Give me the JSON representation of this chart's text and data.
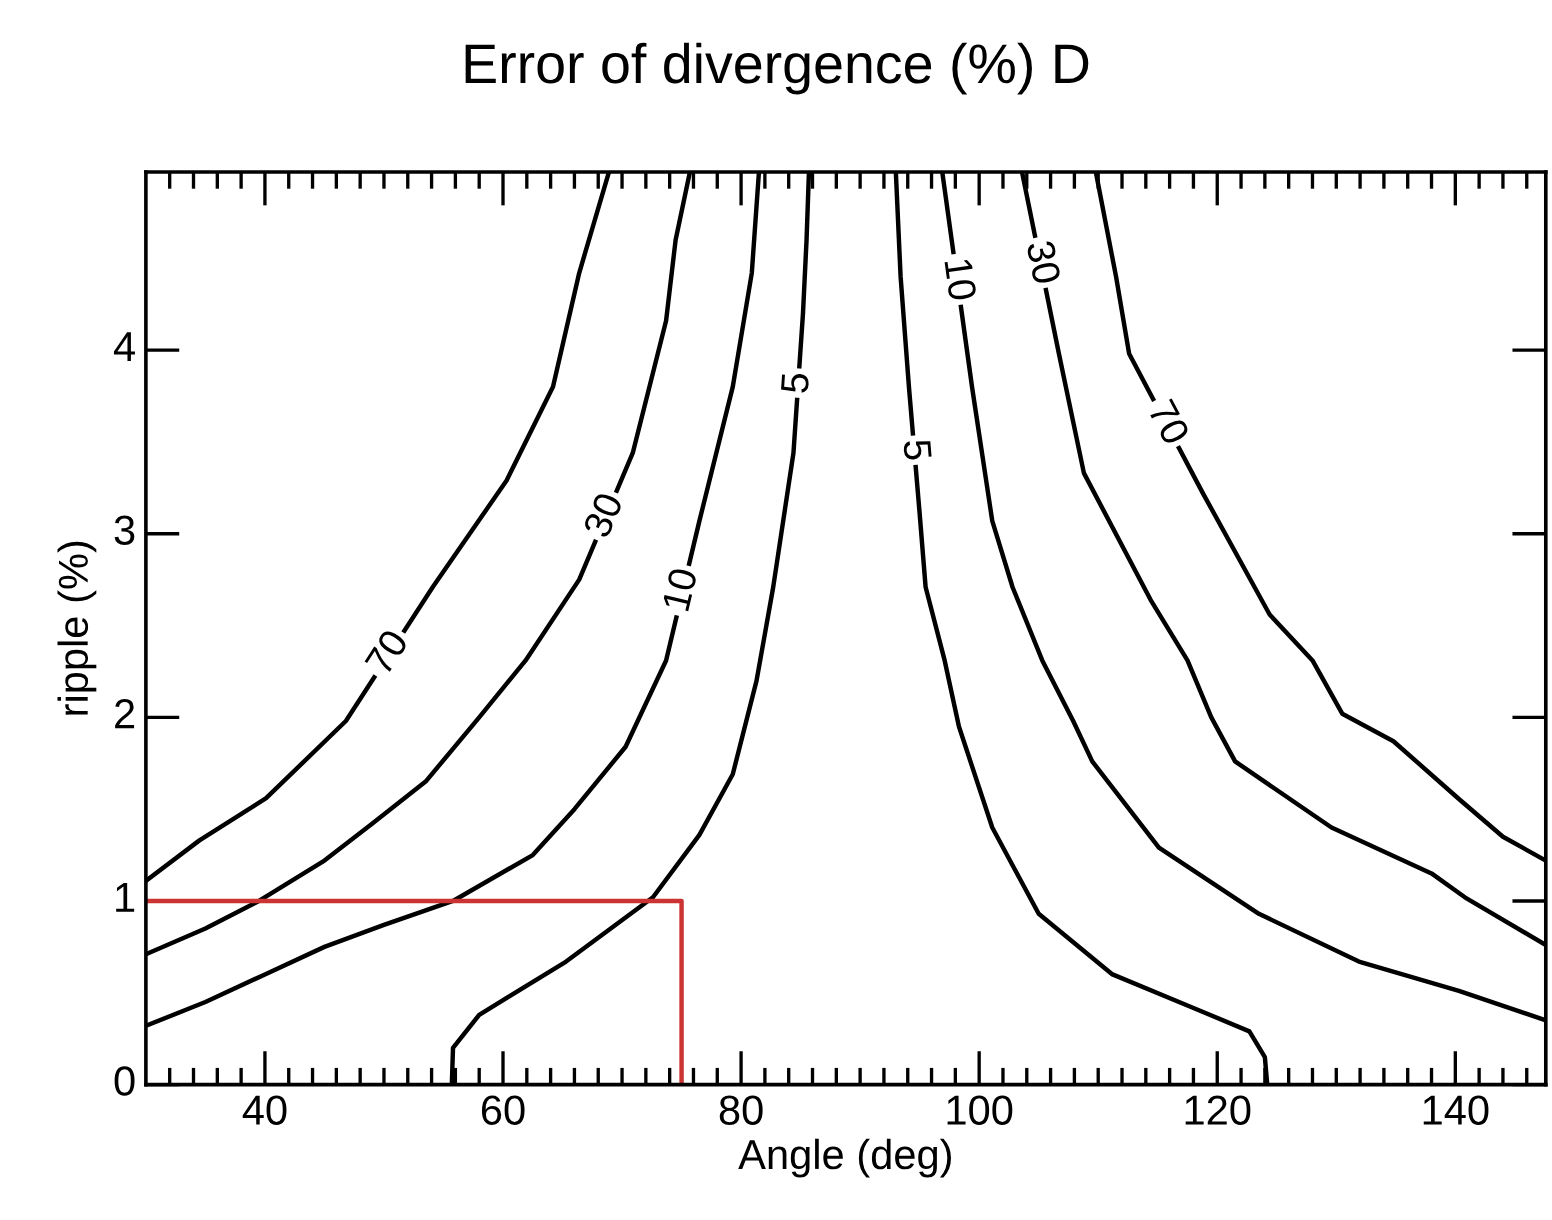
{
  "chart_data": {
    "type": "line",
    "title": "Error of divergence (%) D",
    "xlabel": "Angle (deg)",
    "ylabel": "ripple (%)",
    "xlim": [
      30,
      147.6
    ],
    "ylim": [
      0,
      4.97
    ],
    "xticks": [
      40,
      60,
      80,
      100,
      120,
      140
    ],
    "yticks": [
      0,
      1,
      2,
      3,
      4
    ],
    "grid": false,
    "legend": false,
    "marker": "none",
    "line_style": "solid",
    "series": [
      {
        "name": "70",
        "color": "#000000",
        "x": [
          30,
          34.5,
          40.1,
          46.8,
          54.1,
          60.3,
          64.2,
          66.4,
          68.9
        ],
        "values": [
          1.11,
          1.33,
          1.56,
          1.98,
          2.71,
          3.29,
          3.8,
          4.42,
          4.97
        ]
      },
      {
        "name": "30",
        "color": "#000000",
        "x": [
          30,
          35,
          39.5,
          45,
          49,
          53.5,
          58,
          61.9,
          66.4,
          70.9,
          73.7,
          74.5,
          75.7
        ],
        "values": [
          0.71,
          0.85,
          1.0,
          1.22,
          1.42,
          1.65,
          2.0,
          2.31,
          2.75,
          3.44,
          4.16,
          4.6,
          4.97
        ]
      },
      {
        "name": "10",
        "color": "#000000",
        "x": [
          30,
          35,
          40,
          45,
          50,
          55.8,
          62.5,
          66,
          70.3,
          73.7,
          76.5,
          79.3,
          80.9,
          81.5
        ],
        "values": [
          0.32,
          0.45,
          0.6,
          0.75,
          0.87,
          1.0,
          1.25,
          1.5,
          1.84,
          2.31,
          3.07,
          3.8,
          4.42,
          4.97
        ]
      },
      {
        "name": "5",
        "color": "#000000",
        "x": [
          55.7,
          55.8,
          58,
          65.3,
          72.6,
          76.5,
          79.3,
          81.3,
          82.7,
          84.4,
          85.2,
          85.5,
          85.7
        ],
        "values": [
          0,
          0.2,
          0.38,
          0.67,
          1.02,
          1.36,
          1.69,
          2.2,
          2.71,
          3.44,
          4.2,
          4.6,
          4.97
        ]
      },
      {
        "name": "5",
        "color": "#000000",
        "x": [
          93.0,
          93.4,
          94.1,
          95,
          95.5,
          97.1,
          98.3,
          101.1,
          105,
          111.2,
          117.9,
          122.7,
          124,
          124.2
        ],
        "values": [
          4.97,
          4.4,
          3.8,
          3.11,
          2.71,
          2.31,
          1.95,
          1.4,
          0.93,
          0.6,
          0.42,
          0.29,
          0.15,
          0
        ]
      },
      {
        "name": "10",
        "color": "#000000",
        "x": [
          96.9,
          99.4,
          101.1,
          102.8,
          105.3,
          107.9,
          109.5,
          115.1,
          123.5,
          131.9,
          140.3,
          147.6
        ],
        "values": [
          4.97,
          3.8,
          3.07,
          2.71,
          2.31,
          1.98,
          1.76,
          1.29,
          0.93,
          0.67,
          0.51,
          0.35
        ]
      },
      {
        "name": "30",
        "color": "#000000",
        "x": [
          103.6,
          106.7,
          108.8,
          114.4,
          117.5,
          119.5,
          121.5,
          129.6,
          138,
          140.8,
          147.6
        ],
        "values": [
          4.97,
          3.98,
          3.33,
          2.64,
          2.31,
          2.0,
          1.76,
          1.4,
          1.15,
          1.02,
          0.76
        ]
      },
      {
        "name": "70",
        "color": "#000000",
        "x": [
          109.8,
          111.5,
          112.6,
          118.8,
          124.4,
          128,
          130.5,
          134.8,
          140.4,
          144,
          147.6
        ],
        "values": [
          4.97,
          4.4,
          3.98,
          3.22,
          2.56,
          2.31,
          2.02,
          1.87,
          1.55,
          1.35,
          1.22
        ]
      },
      {
        "color": "#cc3333",
        "x": [
          30,
          75,
          75
        ],
        "values": [
          1,
          1,
          0
        ]
      }
    ]
  }
}
